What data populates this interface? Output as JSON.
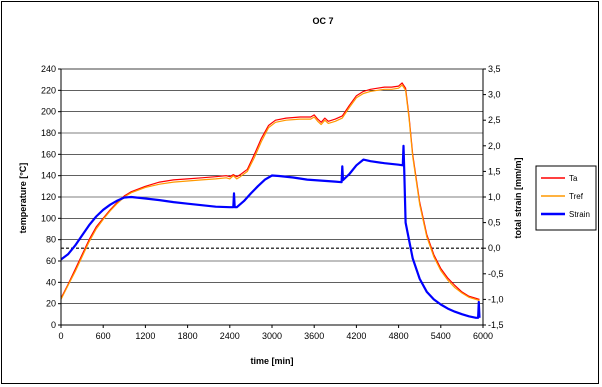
{
  "chart_data": {
    "type": "line",
    "title": "OC 7",
    "xlabel": "time [min]",
    "ylabel_left": "temperature [°C]",
    "ylabel_right": "total strain [mm/m]",
    "xlim": [
      0,
      6000
    ],
    "ylim_left": [
      0,
      240
    ],
    "ylim_right": [
      -1.5,
      3.5
    ],
    "x_ticks": [
      0,
      600,
      1200,
      1800,
      2400,
      3000,
      3600,
      4200,
      4800,
      5400,
      6000
    ],
    "y_ticks_left": [
      0,
      20,
      40,
      60,
      80,
      100,
      120,
      140,
      160,
      180,
      200,
      220,
      240
    ],
    "y_ticks_right": [
      "-1,5",
      "-1,0",
      "-0,5",
      "0,0",
      "0,5",
      "1,0",
      "1,5",
      "2,0",
      "2,5",
      "3,0",
      "3,5"
    ],
    "y_ticks_right_values": [
      -1.5,
      -1.0,
      -0.5,
      0.0,
      0.5,
      1.0,
      1.5,
      2.0,
      2.5,
      3.0,
      3.5
    ],
    "grid": "horizontal",
    "legend": "right",
    "reference_line": {
      "axis": "right",
      "value": 0.0,
      "style": "dashed"
    },
    "series": [
      {
        "name": "Ta",
        "color": "#ff0000",
        "axis": "left",
        "points": [
          [
            0,
            25
          ],
          [
            100,
            38
          ],
          [
            200,
            52
          ],
          [
            300,
            66
          ],
          [
            400,
            80
          ],
          [
            500,
            92
          ],
          [
            600,
            100
          ],
          [
            700,
            108
          ],
          [
            800,
            115
          ],
          [
            900,
            121
          ],
          [
            1000,
            125
          ],
          [
            1200,
            130
          ],
          [
            1400,
            134
          ],
          [
            1600,
            136
          ],
          [
            1800,
            137
          ],
          [
            2000,
            138
          ],
          [
            2200,
            139
          ],
          [
            2350,
            140
          ],
          [
            2400,
            139
          ],
          [
            2450,
            141
          ],
          [
            2500,
            139
          ],
          [
            2550,
            141
          ],
          [
            2650,
            146
          ],
          [
            2750,
            160
          ],
          [
            2850,
            175
          ],
          [
            2950,
            187
          ],
          [
            3050,
            192
          ],
          [
            3200,
            194
          ],
          [
            3400,
            195
          ],
          [
            3550,
            195
          ],
          [
            3600,
            197
          ],
          [
            3650,
            193
          ],
          [
            3700,
            190
          ],
          [
            3750,
            194
          ],
          [
            3800,
            191
          ],
          [
            3900,
            193
          ],
          [
            4000,
            196
          ],
          [
            4100,
            206
          ],
          [
            4200,
            215
          ],
          [
            4300,
            219
          ],
          [
            4400,
            221
          ],
          [
            4500,
            222
          ],
          [
            4600,
            223
          ],
          [
            4700,
            223
          ],
          [
            4800,
            224
          ],
          [
            4850,
            227
          ],
          [
            4900,
            222
          ],
          [
            4950,
            195
          ],
          [
            5000,
            160
          ],
          [
            5100,
            115
          ],
          [
            5200,
            85
          ],
          [
            5300,
            66
          ],
          [
            5400,
            53
          ],
          [
            5500,
            44
          ],
          [
            5600,
            37
          ],
          [
            5700,
            31
          ],
          [
            5800,
            27
          ],
          [
            5900,
            25
          ],
          [
            5950,
            24
          ]
        ]
      },
      {
        "name": "Tref",
        "color": "#ff9900",
        "axis": "left",
        "points": [
          [
            0,
            24
          ],
          [
            100,
            37
          ],
          [
            200,
            50
          ],
          [
            300,
            64
          ],
          [
            400,
            78
          ],
          [
            500,
            90
          ],
          [
            600,
            99
          ],
          [
            700,
            107
          ],
          [
            800,
            114
          ],
          [
            900,
            120
          ],
          [
            1000,
            124
          ],
          [
            1200,
            129
          ],
          [
            1400,
            132
          ],
          [
            1600,
            134
          ],
          [
            1800,
            135
          ],
          [
            2000,
            136
          ],
          [
            2200,
            137
          ],
          [
            2350,
            138
          ],
          [
            2400,
            137
          ],
          [
            2450,
            140
          ],
          [
            2500,
            137
          ],
          [
            2550,
            139
          ],
          [
            2650,
            144
          ],
          [
            2750,
            157
          ],
          [
            2850,
            172
          ],
          [
            2950,
            185
          ],
          [
            3050,
            190
          ],
          [
            3200,
            192
          ],
          [
            3400,
            193
          ],
          [
            3550,
            193
          ],
          [
            3600,
            195
          ],
          [
            3650,
            191
          ],
          [
            3700,
            188
          ],
          [
            3750,
            192
          ],
          [
            3800,
            189
          ],
          [
            3900,
            191
          ],
          [
            4000,
            194
          ],
          [
            4100,
            204
          ],
          [
            4200,
            213
          ],
          [
            4300,
            217
          ],
          [
            4400,
            219
          ],
          [
            4500,
            220
          ],
          [
            4600,
            221
          ],
          [
            4700,
            221
          ],
          [
            4800,
            222
          ],
          [
            4850,
            225
          ],
          [
            4900,
            220
          ],
          [
            4950,
            193
          ],
          [
            5000,
            158
          ],
          [
            5100,
            113
          ],
          [
            5200,
            83
          ],
          [
            5300,
            64
          ],
          [
            5400,
            51
          ],
          [
            5500,
            42
          ],
          [
            5600,
            35
          ],
          [
            5700,
            30
          ],
          [
            5800,
            26
          ],
          [
            5900,
            24
          ],
          [
            5950,
            23
          ]
        ]
      },
      {
        "name": "Strain",
        "color": "#0000ff",
        "axis": "right",
        "points": [
          [
            0,
            -0.22
          ],
          [
            100,
            -0.12
          ],
          [
            200,
            0.05
          ],
          [
            300,
            0.25
          ],
          [
            400,
            0.45
          ],
          [
            500,
            0.62
          ],
          [
            600,
            0.75
          ],
          [
            700,
            0.85
          ],
          [
            800,
            0.93
          ],
          [
            900,
            0.99
          ],
          [
            1000,
            1.0
          ],
          [
            1200,
            0.97
          ],
          [
            1400,
            0.94
          ],
          [
            1600,
            0.9
          ],
          [
            1800,
            0.87
          ],
          [
            2000,
            0.84
          ],
          [
            2200,
            0.81
          ],
          [
            2400,
            0.8
          ],
          [
            2450,
            0.8
          ],
          [
            2460,
            1.07
          ],
          [
            2470,
            0.8
          ],
          [
            2500,
            0.8
          ],
          [
            2600,
            0.92
          ],
          [
            2700,
            1.07
          ],
          [
            2800,
            1.21
          ],
          [
            2900,
            1.34
          ],
          [
            3000,
            1.42
          ],
          [
            3100,
            1.41
          ],
          [
            3300,
            1.38
          ],
          [
            3500,
            1.34
          ],
          [
            3700,
            1.32
          ],
          [
            3900,
            1.3
          ],
          [
            3990,
            1.29
          ],
          [
            4000,
            1.6
          ],
          [
            4010,
            1.33
          ],
          [
            4100,
            1.45
          ],
          [
            4200,
            1.62
          ],
          [
            4300,
            1.73
          ],
          [
            4400,
            1.7
          ],
          [
            4600,
            1.66
          ],
          [
            4800,
            1.63
          ],
          [
            4860,
            1.62
          ],
          [
            4870,
            2.0
          ],
          [
            4880,
            1.55
          ],
          [
            4900,
            0.5
          ],
          [
            5000,
            -0.2
          ],
          [
            5100,
            -0.6
          ],
          [
            5200,
            -0.85
          ],
          [
            5300,
            -1.0
          ],
          [
            5400,
            -1.1
          ],
          [
            5500,
            -1.18
          ],
          [
            5600,
            -1.24
          ],
          [
            5700,
            -1.29
          ],
          [
            5800,
            -1.33
          ],
          [
            5900,
            -1.36
          ],
          [
            5930,
            -1.36
          ],
          [
            5940,
            -1.05
          ],
          [
            5950,
            -1.36
          ]
        ]
      }
    ]
  }
}
